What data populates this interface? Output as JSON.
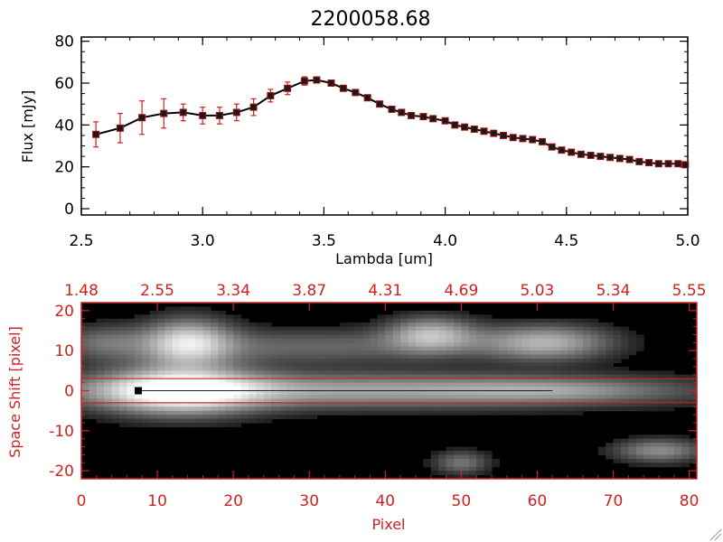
{
  "chart_data": [
    {
      "type": "line",
      "title": "2200058.68",
      "xlabel": "Lambda [um]",
      "ylabel": "Flux [mJy]",
      "xlim": [
        2.5,
        5.0
      ],
      "ylim": [
        -3,
        82
      ],
      "xticks": [
        2.5,
        3.0,
        3.5,
        4.0,
        4.5,
        5.0
      ],
      "xtick_labels": [
        "2.5",
        "3.0",
        "3.5",
        "4.0",
        "4.5",
        "5.0"
      ],
      "yticks": [
        0,
        20,
        40,
        60,
        80
      ],
      "ytick_labels": [
        "0",
        "20",
        "40",
        "60",
        "80"
      ],
      "series": [
        {
          "name": "Flux",
          "x": [
            2.56,
            2.66,
            2.75,
            2.84,
            2.92,
            3.0,
            3.07,
            3.14,
            3.21,
            3.28,
            3.35,
            3.42,
            3.47,
            3.53,
            3.58,
            3.63,
            3.68,
            3.73,
            3.78,
            3.82,
            3.86,
            3.91,
            3.95,
            4.0,
            4.04,
            4.08,
            4.12,
            4.16,
            4.2,
            4.24,
            4.28,
            4.32,
            4.36,
            4.4,
            4.44,
            4.48,
            4.52,
            4.56,
            4.6,
            4.64,
            4.68,
            4.72,
            4.76,
            4.8,
            4.84,
            4.88,
            4.92,
            4.96,
            4.99
          ],
          "y": [
            35.5,
            38.5,
            43.5,
            45.5,
            46,
            44.5,
            44.5,
            46,
            48.5,
            54,
            57.5,
            61,
            61.5,
            60,
            57.5,
            55.5,
            53,
            50,
            47.5,
            46,
            44.5,
            44,
            43,
            42,
            40,
            39,
            38,
            37,
            36,
            35,
            34,
            33.5,
            33,
            32,
            29.5,
            28,
            27,
            26,
            25.5,
            25,
            24.5,
            24,
            23.5,
            22.5,
            22,
            21.5,
            21.5,
            21.5,
            21
          ],
          "yerr": [
            6,
            7,
            8,
            7,
            4,
            4,
            4,
            4,
            4,
            3,
            3,
            2,
            1,
            1,
            1,
            1,
            1,
            1,
            1,
            1,
            1,
            1,
            1,
            1,
            1,
            1,
            1,
            1,
            1,
            1,
            1,
            1,
            1,
            1,
            1,
            1,
            1,
            1,
            1,
            1,
            1,
            1,
            1,
            1,
            1,
            1,
            1,
            1,
            1
          ]
        }
      ]
    },
    {
      "type": "heatmap",
      "title": "",
      "xlabel": "Pixel",
      "ylabel": "Space Shift [pixel]",
      "xlim": [
        0,
        81
      ],
      "ylim": [
        -22,
        22
      ],
      "xticks": [
        0,
        10,
        20,
        30,
        40,
        50,
        60,
        70,
        80
      ],
      "xtick_labels": [
        "0",
        "10",
        "20",
        "30",
        "40",
        "50",
        "60",
        "70",
        "80"
      ],
      "top_ticks": [
        0,
        10,
        20,
        30,
        40,
        50,
        60,
        70,
        80
      ],
      "top_tick_labels": [
        "1.48",
        "2.55",
        "3.34",
        "3.87",
        "4.31",
        "4.69",
        "5.03",
        "5.34",
        "5.55"
      ],
      "yticks": [
        -20,
        -10,
        0,
        10,
        20
      ],
      "ytick_labels": [
        "-20",
        "-10",
        "0",
        "10",
        "20"
      ],
      "extraction_lines": [
        3,
        -3
      ],
      "marker": {
        "x": 7.5,
        "y": 0
      },
      "blobs": [
        {
          "x": 13,
          "y": 0,
          "sx": 7,
          "sy": 4,
          "amp": 0.95
        },
        {
          "x": 35,
          "y": 0,
          "sx": 28,
          "sy": 3,
          "amp": 0.55
        },
        {
          "x": 62,
          "y": 0,
          "sx": 10,
          "sy": 2,
          "amp": 0.25
        },
        {
          "x": 14,
          "y": 12,
          "sx": 4,
          "sy": 4,
          "amp": 0.75
        },
        {
          "x": 30,
          "y": 11,
          "sx": 15,
          "sy": 3,
          "amp": 0.3
        },
        {
          "x": 46,
          "y": 14,
          "sx": 4,
          "sy": 3,
          "amp": 0.6
        },
        {
          "x": 61,
          "y": 12,
          "sx": 6,
          "sy": 3,
          "amp": 0.6
        },
        {
          "x": 3,
          "y": 12,
          "sx": 4,
          "sy": 3,
          "amp": 0.3
        },
        {
          "x": 76,
          "y": -15,
          "sx": 4,
          "sy": 2,
          "amp": 0.45
        },
        {
          "x": 50,
          "y": -18,
          "sx": 2.5,
          "sy": 2,
          "amp": 0.35
        }
      ]
    }
  ]
}
